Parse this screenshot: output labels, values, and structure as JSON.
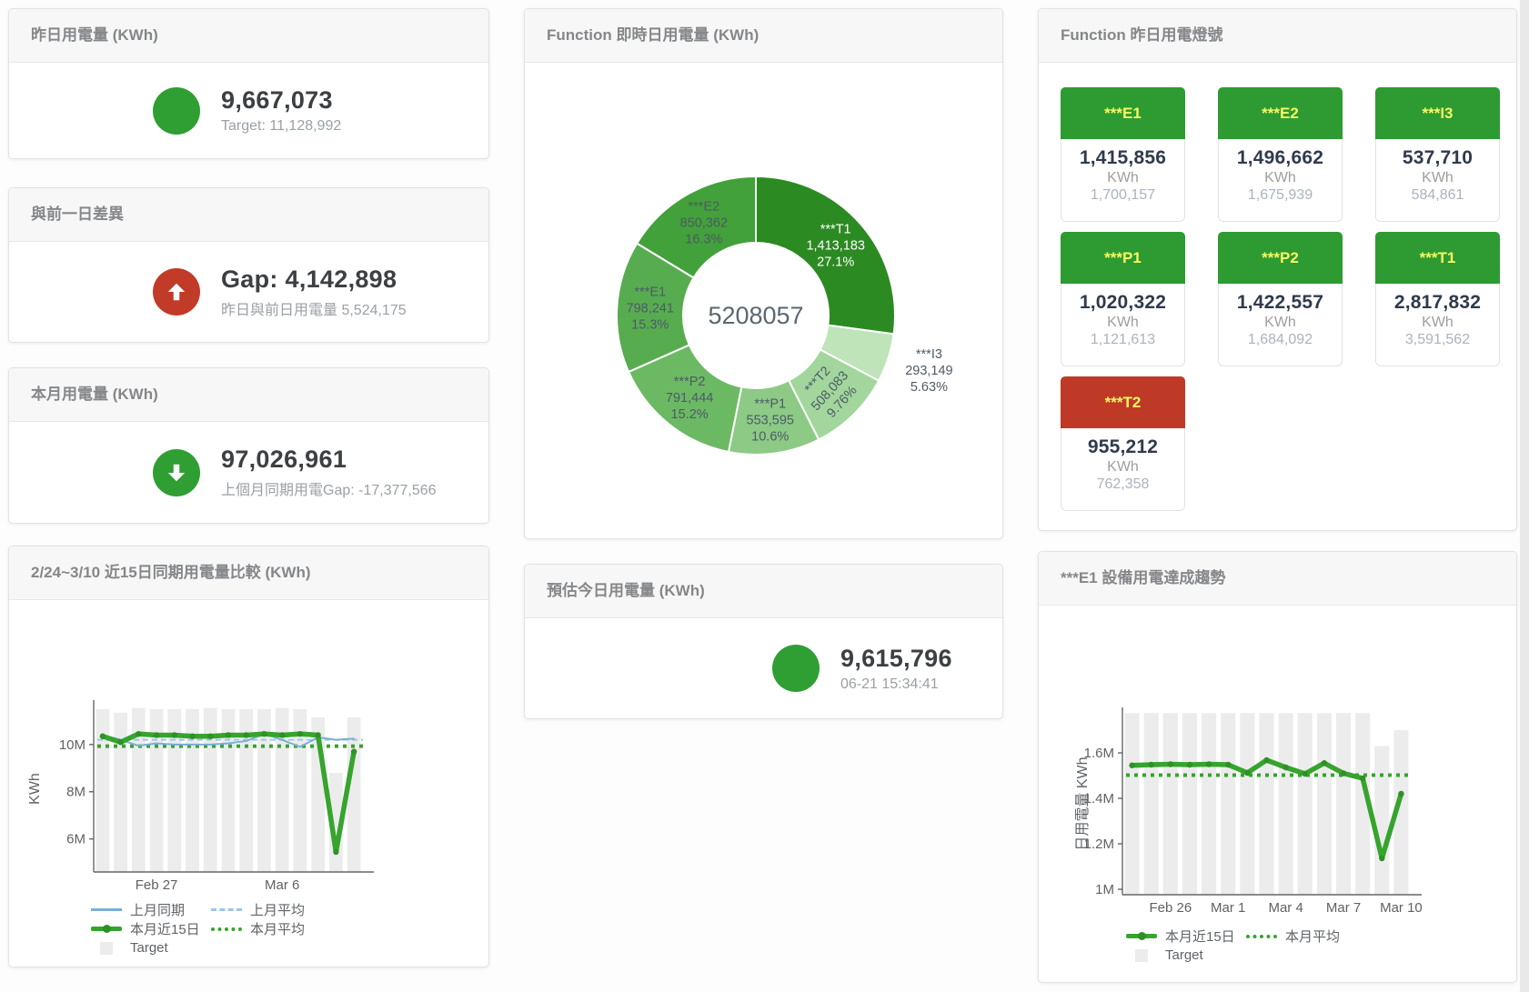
{
  "cards": {
    "yesterday": {
      "title": "昨日用電量 (KWh)",
      "value": "9,667,073",
      "subtitle": "Target: 11,128,992",
      "status_color": "#2f9e33"
    },
    "gap_prev_day": {
      "title": "與前一日差異",
      "value": "Gap: 4,142,898",
      "subtitle": "昨日與前日用電量 5,524,175",
      "status_color": "#c13b28",
      "direction": "up"
    },
    "month": {
      "title": "本月用電量 (KWh)",
      "value": "97,026,961",
      "subtitle": "上個月同期用電Gap: -17,377,566",
      "status_color": "#2f9e33",
      "direction": "down"
    },
    "estimate_today": {
      "title": "預估今日用電量 (KWh)",
      "value": "9,615,796",
      "subtitle": "06-21 15:34:41",
      "status_color": "#2f9e33"
    },
    "realtime_donut": {
      "title": "Function 即時日用電量 (KWh)"
    },
    "signal": {
      "title": "Function 昨日用電燈號",
      "unit": "KWh",
      "tiles": [
        {
          "label": "***E1",
          "value": "1,415,856",
          "target": "1,700,157",
          "status": "green"
        },
        {
          "label": "***E2",
          "value": "1,496,662",
          "target": "1,675,939",
          "status": "green"
        },
        {
          "label": "***I3",
          "value": "537,710",
          "target": "584,861",
          "status": "green"
        },
        {
          "label": "***P1",
          "value": "1,020,322",
          "target": "1,121,613",
          "status": "green"
        },
        {
          "label": "***P2",
          "value": "1,422,557",
          "target": "1,684,092",
          "status": "green"
        },
        {
          "label": "***T1",
          "value": "2,817,832",
          "target": "3,591,562",
          "status": "green"
        },
        {
          "label": "***T2",
          "value": "955,212",
          "target": "762,358",
          "status": "red"
        }
      ]
    },
    "compare15": {
      "title": "2/24~3/10 近15日同期用電量比較 (KWh)"
    },
    "e1_trend": {
      "title": "***E1 設備用電達成趨勢"
    }
  },
  "colors": {
    "green": "#2f9e33",
    "red": "#c13b28",
    "tile_green": "#2d9b31",
    "tile_red": "#bf3a26",
    "tile_label_yellow": "#f7f964",
    "bar_gray": "#ececec",
    "line_green": "#36a42d",
    "line_blue": "#7aaed6",
    "blue_dash": "#9cc6e8"
  },
  "chart_data": [
    {
      "type": "pie",
      "title": "Function 即時日用電量 (KWh)",
      "center_total": "5208057",
      "legend_position": "none",
      "series": [
        {
          "name": "***T1",
          "value": 1413183,
          "value_label": "1,413,183",
          "pct": 27.1,
          "pct_label": "27.1%",
          "color": "#2c8a22",
          "label_color": "#ffffff",
          "label_pos": "inside"
        },
        {
          "name": "***I3",
          "value": 293149,
          "value_label": "293,149",
          "pct": 5.63,
          "pct_label": "5.63%",
          "color": "#bfe4ba",
          "label_pos": "outside"
        },
        {
          "name": "***T2",
          "value": 508083,
          "value_label": "508,083",
          "pct": 9.76,
          "pct_label": "9.76%",
          "color": "#a2d69c",
          "label_pos": "inside",
          "label_rotate": -48
        },
        {
          "name": "***P1",
          "value": 553595,
          "value_label": "553,595",
          "pct": 10.6,
          "pct_label": "10.6%",
          "color": "#8cca85",
          "label_pos": "inside"
        },
        {
          "name": "***P2",
          "value": 791444,
          "value_label": "791,444",
          "pct": 15.2,
          "pct_label": "15.2%",
          "color": "#6cb964",
          "label_pos": "inside"
        },
        {
          "name": "***E1",
          "value": 798241,
          "value_label": "798,241",
          "pct": 15.3,
          "pct_label": "15.3%",
          "color": "#58ac50",
          "label_pos": "inside"
        },
        {
          "name": "***E2",
          "value": 850362,
          "value_label": "850,362",
          "pct": 16.3,
          "pct_label": "16.3%",
          "color": "#42a13a",
          "label_pos": "inside"
        }
      ]
    },
    {
      "type": "line",
      "title": "2/24~3/10 近15日同期用電量比較 (KWh)",
      "ylabel": "KWh",
      "unit_scale": "millions",
      "categories": [
        "2/24",
        "2/25",
        "2/26",
        "2/27",
        "2/28",
        "3/1",
        "3/2",
        "3/3",
        "3/4",
        "3/5",
        "3/6",
        "3/7",
        "3/8",
        "3/9",
        "3/10"
      ],
      "ylim": [
        4.6,
        11.65
      ],
      "yticks": [
        {
          "v": 6,
          "label": "6M"
        },
        {
          "v": 8,
          "label": "8M"
        },
        {
          "v": 10,
          "label": "10M"
        }
      ],
      "xticks": [
        {
          "i": 3,
          "label": "Feb 27"
        },
        {
          "i": 10,
          "label": "Mar 6"
        }
      ],
      "grid": false,
      "series": [
        {
          "name": "Target",
          "type": "bar",
          "color": "#ececec",
          "values": [
            11.5,
            11.35,
            11.55,
            11.5,
            11.5,
            11.5,
            11.55,
            11.5,
            11.5,
            11.5,
            11.55,
            11.5,
            11.15,
            8.8,
            11.15
          ]
        },
        {
          "name": "上月同期",
          "type": "line",
          "color": "#7aaed6",
          "width": 2,
          "values": [
            10.4,
            10.2,
            9.95,
            10.05,
            10.0,
            10.0,
            10.0,
            10.05,
            10.15,
            10.45,
            10.2,
            9.9,
            10.3,
            10.2,
            10.25
          ]
        },
        {
          "name": "上月平均",
          "type": "avg",
          "color": "#9cc6e8",
          "width": 2,
          "dash": "6 4",
          "value": 10.2
        },
        {
          "name": "本月近15日",
          "type": "line",
          "color": "#36a42d",
          "width": 5.5,
          "dots": true,
          "dot_color": "#2d9126",
          "values": [
            10.35,
            10.1,
            10.45,
            10.4,
            10.4,
            10.35,
            10.35,
            10.4,
            10.4,
            10.45,
            10.4,
            10.45,
            10.4,
            5.45,
            9.7
          ]
        },
        {
          "name": "本月平均",
          "type": "avg",
          "color": "#36a42d",
          "width": 4,
          "dash": "4 5",
          "value": 9.93
        }
      ],
      "legend": [
        {
          "label": "上月同期",
          "style": "blue-line"
        },
        {
          "label": "上月平均",
          "style": "blue-dash"
        },
        {
          "label": "本月近15日",
          "style": "green-thick"
        },
        {
          "label": "本月平均",
          "style": "green-dot"
        },
        {
          "label": "Target",
          "style": "target-sq"
        }
      ]
    },
    {
      "type": "line",
      "title": "***E1 設備用電達成趨勢",
      "ylabel": "日用電量 KWh",
      "unit_scale": "millions",
      "categories": [
        "2/24",
        "2/25",
        "2/26",
        "2/27",
        "2/28",
        "3/1",
        "3/2",
        "3/3",
        "3/4",
        "3/5",
        "3/6",
        "3/7",
        "3/8",
        "3/9",
        "3/10"
      ],
      "ylim": [
        0.976,
        1.776
      ],
      "yticks": [
        {
          "v": 1,
          "label": "1M"
        },
        {
          "v": 1.2,
          "label": "1.2M"
        },
        {
          "v": 1.4,
          "label": "1.4M"
        },
        {
          "v": 1.6,
          "label": "1.6M"
        }
      ],
      "xticks": [
        {
          "i": 2,
          "label": "Feb 26"
        },
        {
          "i": 5,
          "label": "Mar 1"
        },
        {
          "i": 8,
          "label": "Mar 4"
        },
        {
          "i": 11,
          "label": "Mar 7"
        },
        {
          "i": 14,
          "label": "Mar 10"
        }
      ],
      "grid": false,
      "series": [
        {
          "name": "Target",
          "type": "bar",
          "color": "#ececec",
          "values": [
            1.775,
            1.775,
            1.775,
            1.775,
            1.775,
            1.775,
            1.775,
            1.775,
            1.775,
            1.775,
            1.775,
            1.775,
            1.775,
            1.63,
            1.7
          ]
        },
        {
          "name": "本月近15日",
          "type": "line",
          "color": "#36a42d",
          "width": 5.5,
          "dots": true,
          "dot_color": "#2d9126",
          "values": [
            1.545,
            1.548,
            1.55,
            1.548,
            1.55,
            1.548,
            1.512,
            1.568,
            1.536,
            1.508,
            1.555,
            1.51,
            1.488,
            1.136,
            1.42
          ]
        },
        {
          "name": "本月平均",
          "type": "avg",
          "color": "#36a42d",
          "width": 4,
          "dash": "4 5",
          "value": 1.502
        }
      ],
      "legend": [
        {
          "label": "本月近15日",
          "style": "green-thick"
        },
        {
          "label": "本月平均",
          "style": "green-dot"
        },
        {
          "label": "Target",
          "style": "target-sq"
        }
      ]
    }
  ]
}
